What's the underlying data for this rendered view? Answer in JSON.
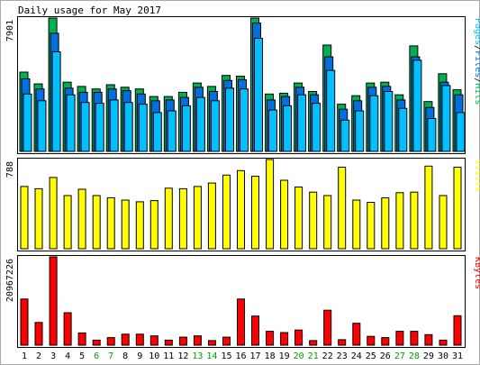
{
  "chart_data": {
    "type": "bar",
    "title": "Daily usage for May 2017",
    "categories": [
      "1",
      "2",
      "3",
      "4",
      "5",
      "6",
      "7",
      "8",
      "9",
      "10",
      "11",
      "12",
      "13",
      "14",
      "15",
      "16",
      "17",
      "18",
      "19",
      "20",
      "21",
      "22",
      "23",
      "24",
      "25",
      "26",
      "27",
      "28",
      "29",
      "30",
      "31"
    ],
    "weekend_days": [
      "6",
      "7",
      "13",
      "14",
      "20",
      "21",
      "27",
      "28"
    ],
    "panels": [
      {
        "id": "hits_files_pages",
        "ylabel": "Pages/Files/Hits",
        "ymax_label": "7901",
        "ymax": 7901,
        "series": [
          {
            "name": "Hits",
            "color": "#00b050",
            "values": [
              4700,
              4000,
              7901,
              4100,
              3850,
              3700,
              3950,
              3800,
              3700,
              3250,
              3250,
              3500,
              4050,
              3850,
              4500,
              4450,
              7901,
              3400,
              3450,
              4050,
              3550,
              6300,
              2800,
              3300,
              4050,
              4100,
              3350,
              6250,
              2950,
              4600,
              3650
            ]
          },
          {
            "name": "Files",
            "color": "#0070e0",
            "values": [
              4300,
              3700,
              7000,
              3750,
              3500,
              3500,
              3700,
              3600,
              3400,
              3000,
              3050,
              3200,
              3800,
              3550,
              4200,
              4250,
              7600,
              3050,
              3250,
              3800,
              3350,
              5600,
              2500,
              3000,
              3800,
              3850,
              3050,
              5600,
              2600,
              4100,
              3350
            ]
          },
          {
            "name": "Pages",
            "color": "#00c0ff",
            "values": [
              3400,
              3000,
              5900,
              3350,
              2900,
              2850,
              3050,
              2900,
              2800,
              2300,
              2400,
              2700,
              3200,
              3000,
              3750,
              3700,
              6700,
              2450,
              2700,
              3350,
              2850,
              4800,
              1850,
              2400,
              3300,
              3550,
              2550,
              5400,
              1950,
              3900,
              2300
            ]
          }
        ]
      },
      {
        "id": "visits",
        "ylabel": "Visits",
        "ymax_label": "788",
        "ymax": 788,
        "series": [
          {
            "name": "Visits",
            "color": "#ffff00",
            "values": [
              550,
              530,
              630,
              470,
              525,
              470,
              450,
              430,
              415,
              425,
              535,
              530,
              550,
              580,
              650,
              690,
              640,
              788,
              605,
              545,
              500,
              470,
              720,
              430,
              410,
              450,
              495,
              500,
              730,
              470,
              720
            ]
          }
        ]
      },
      {
        "id": "kbytes",
        "ylabel": "KBytes",
        "ymax_label": "20967226",
        "ymax": 20967226,
        "series": [
          {
            "name": "KBytes",
            "color": "#ff0000",
            "values": [
              10950000,
              5400000,
              20967226,
              7700000,
              2900000,
              1200000,
              1800000,
              2600000,
              2600000,
              2200000,
              1200000,
              1900000,
              2200000,
              1100000,
              1900000,
              10950000,
              6900000,
              3300000,
              3000000,
              3600000,
              1100000,
              8300000,
              1300000,
              5200000,
              2100000,
              1800000,
              3300000,
              3300000,
              2500000,
              1200000,
              7000000
            ]
          }
        ]
      }
    ]
  }
}
